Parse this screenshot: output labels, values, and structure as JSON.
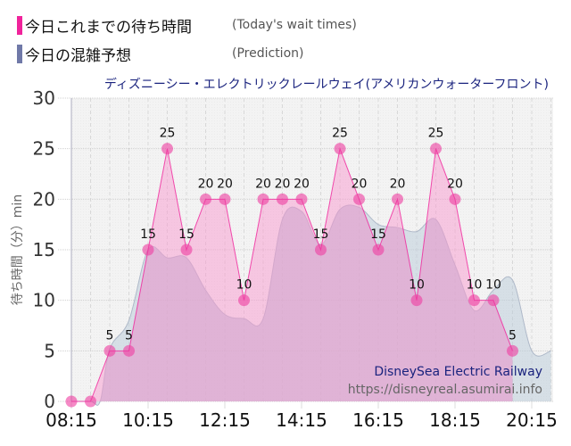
{
  "legend": {
    "items": [
      {
        "label": "今日これまでの待ち時間",
        "sublabel": "(Today's wait times)",
        "color": "#f0239b"
      },
      {
        "label": "今日の混雑予想",
        "sublabel": "(Prediction)",
        "color": "#7079a8"
      }
    ]
  },
  "chart_data": {
    "type": "area",
    "title": "ディズニーシー・エレクトリックレールウェイ(アメリカンウォーターフロント)",
    "xlabel": "",
    "ylabel": "待ち時間（分）min",
    "ylim": [
      0,
      30
    ],
    "yticks": [
      0,
      5,
      10,
      15,
      20,
      25,
      30
    ],
    "xticks": [
      "08:15",
      "10:15",
      "12:15",
      "14:15",
      "16:15",
      "18:15",
      "20:15"
    ],
    "grid": true,
    "legend_position": "top-left",
    "watermark": {
      "title": "DisneySea Electric Railway",
      "url": "https://disneyreal.asumirai.info"
    },
    "series": [
      {
        "name": "今日これまでの待ち時間 (Today's wait times)",
        "type": "line+markers+labels",
        "color": "#f0239b",
        "x": [
          "08:15",
          "08:45",
          "09:15",
          "09:45",
          "10:15",
          "10:45",
          "11:15",
          "11:45",
          "12:15",
          "12:45",
          "13:15",
          "13:45",
          "14:15",
          "14:45",
          "15:15",
          "15:45",
          "16:15",
          "16:45",
          "17:15",
          "17:45",
          "18:15",
          "18:45",
          "19:15",
          "19:45"
        ],
        "values": [
          0,
          0,
          5,
          5,
          15,
          25,
          15,
          20,
          20,
          10,
          20,
          20,
          20,
          15,
          25,
          20,
          15,
          20,
          10,
          25,
          20,
          10,
          10,
          5
        ]
      },
      {
        "name": "今日の混雑予想 (Prediction)",
        "type": "smooth-area",
        "color": "#7079a8",
        "x": [
          "08:15",
          "08:45",
          "09:00",
          "09:15",
          "09:45",
          "10:15",
          "10:45",
          "11:15",
          "11:45",
          "12:15",
          "12:45",
          "13:15",
          "13:45",
          "14:15",
          "14:45",
          "15:15",
          "15:45",
          "16:15",
          "16:45",
          "17:15",
          "17:45",
          "18:15",
          "18:45",
          "19:15",
          "19:45",
          "20:15",
          "20:45"
        ],
        "values": [
          0,
          0,
          0,
          5.2,
          8,
          15,
          14.2,
          14.2,
          11,
          8.6,
          8.2,
          8.2,
          18,
          18.8,
          15.5,
          19,
          19.2,
          17.5,
          17.2,
          16.8,
          18,
          13.5,
          9,
          11,
          12,
          5,
          5
        ]
      }
    ]
  }
}
